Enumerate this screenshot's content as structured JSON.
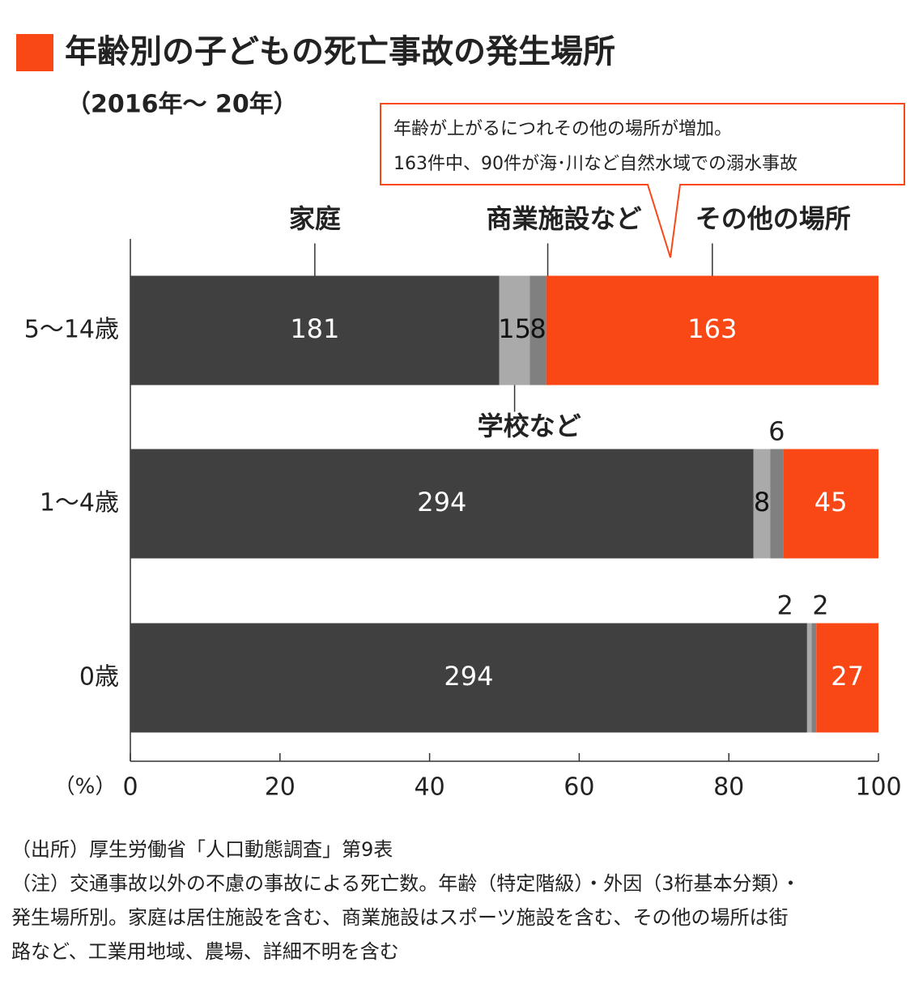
{
  "chart_data": {
    "type": "bar",
    "orientation": "horizontal",
    "stack": "percent",
    "title": "年齢別の子どもの死亡事故の発生場所",
    "subtitle": "（2016年〜 20年）",
    "annotation": [
      "年齢が上がるにつれその他の場所が増加。",
      "163件中、90件が海･川など自然水域での溺水事故"
    ],
    "x_unit": "（%）",
    "categories": [
      "5〜14歳",
      "1〜4歳",
      "0歳"
    ],
    "series": [
      {
        "name": "家庭",
        "color": "#404040",
        "values": [
          181,
          294,
          294
        ]
      },
      {
        "name": "学校など",
        "color": "#aaaaaa",
        "values": [
          15,
          8,
          2
        ]
      },
      {
        "name": "商業施設など",
        "color": "#808080",
        "values": [
          8,
          6,
          2
        ]
      },
      {
        "name": "その他の場所",
        "color": "#f94815",
        "values": [
          163,
          45,
          27
        ]
      }
    ],
    "xlim": [
      0,
      100
    ],
    "xticks": [
      0,
      20,
      40,
      60,
      80,
      100
    ]
  },
  "notes": [
    "（出所）厚生労働省「人口動態調査」第9表",
    "（注）交通事故以外の不慮の事故による死亡数。年齢（特定階級）・外因（3桁基本分類）・",
    "発生場所別。家庭は居住施設を含む、商業施設はスポーツ施設を含む、その他の場所は街",
    "路など、工業用地域、農場、詳細不明を含む"
  ]
}
